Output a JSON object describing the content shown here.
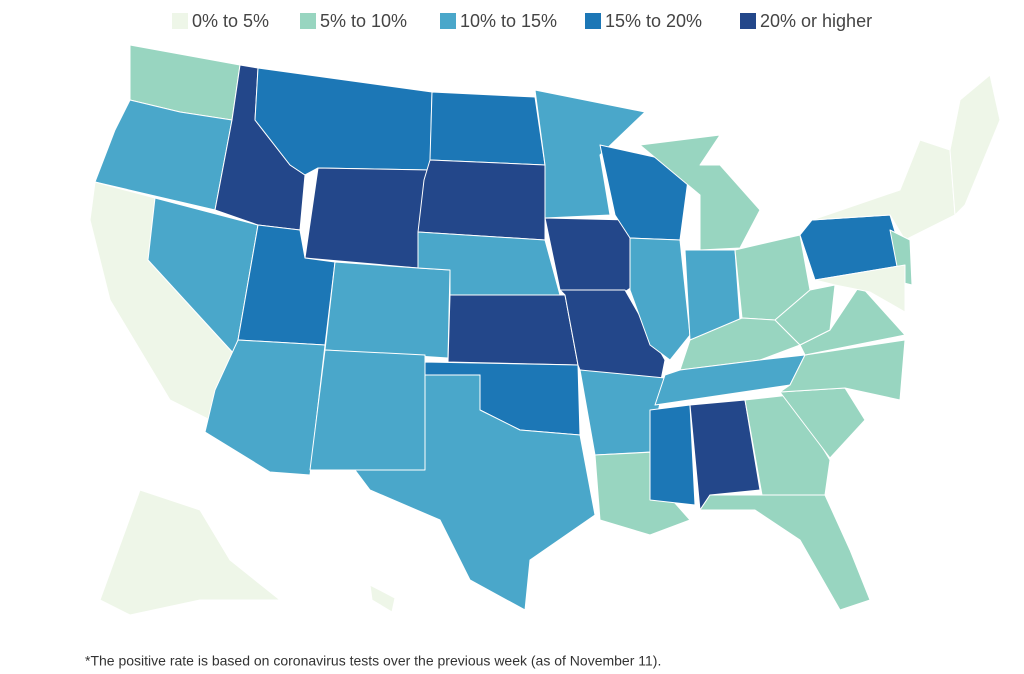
{
  "legend": [
    {
      "label": "0% to 5%",
      "color": "#eef6e8"
    },
    {
      "label": "5% to 10%",
      "color": "#98d5c0"
    },
    {
      "label": "10% to 15%",
      "color": "#4aa7ca"
    },
    {
      "label": "15% to 20%",
      "color": "#1c77b6"
    },
    {
      "label": "20% or higher",
      "color": "#23478a"
    }
  ],
  "footnote": "*The positive rate is based on coronavirus tests over the previous week (as of November 11)."
}
